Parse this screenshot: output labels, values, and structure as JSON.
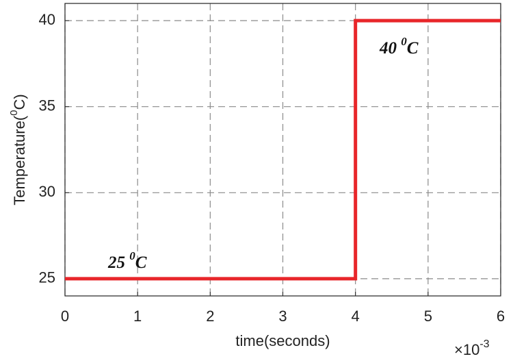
{
  "chart_data": {
    "type": "line",
    "x": [
      0,
      4,
      4,
      6
    ],
    "values": [
      25,
      25,
      40,
      40
    ],
    "color": "#e8262a",
    "xlim": [
      0,
      6
    ],
    "xticks": [
      0,
      1,
      2,
      3,
      4,
      5,
      6
    ],
    "ylim": [
      24,
      41
    ],
    "yticks": [
      25,
      30,
      35,
      40
    ],
    "grid": true,
    "x_label": "time(seconds)",
    "x_multiplier": {
      "base": "×10",
      "exponent": "-3"
    },
    "y_label": {
      "before": "Temperature(",
      "sup": "0",
      "after": "C)"
    },
    "annotations": [
      {
        "text": "25 ",
        "sup": "0",
        "after": "C"
      },
      {
        "text": "40 ",
        "sup": "0",
        "after": "C"
      }
    ]
  }
}
